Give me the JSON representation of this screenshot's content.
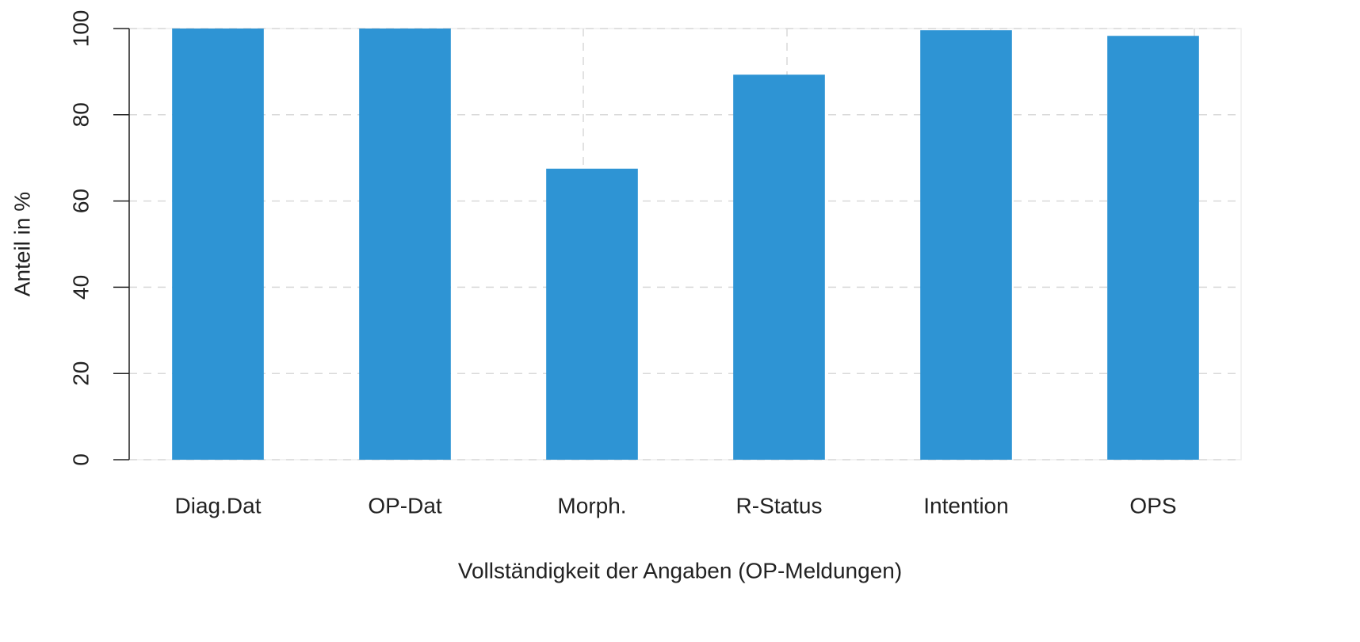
{
  "chart_data": {
    "type": "bar",
    "x_label": "Vollständigkeit der Angaben (OP-Meldungen)",
    "y_label": "Anteil in %",
    "categories": [
      "Diag.Dat",
      "OP-Dat",
      "Morph.",
      "R-Status",
      "Intention",
      "OPS"
    ],
    "values": [
      100,
      100,
      67.5,
      89.3,
      99.6,
      98.3
    ],
    "color": "#2e94d4",
    "ylim": [
      0,
      100
    ],
    "yticks": [
      0,
      20,
      40,
      60,
      80,
      100
    ],
    "grid": true
  }
}
